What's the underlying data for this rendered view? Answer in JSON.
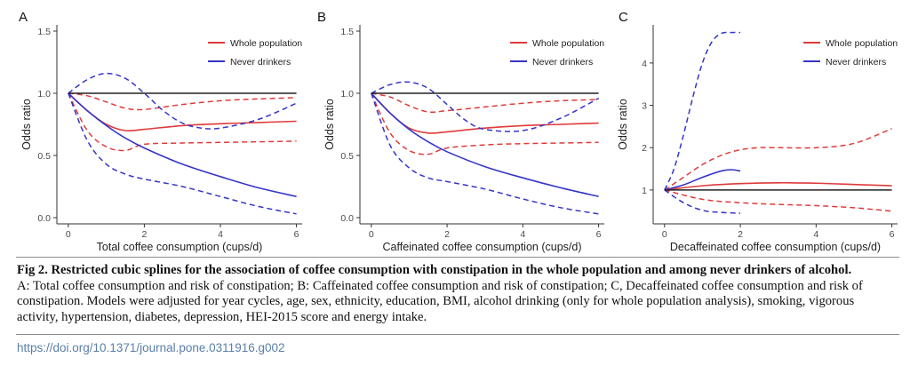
{
  "colors": {
    "whole_population": "#e03a3a",
    "never_drinkers": "#3535c8",
    "reference": "#222222",
    "axis_text": "#4a4a4a",
    "doi_link": "#5a7fa8"
  },
  "chart_data": [
    {
      "panel": "A",
      "type": "line",
      "xlabel": "Total coffee consumption (cups/d)",
      "ylabel": "Odds ratio",
      "xlim": [
        -0.3,
        6.15
      ],
      "ylim": [
        -0.05,
        1.55
      ],
      "xticks": [
        0,
        2,
        4,
        6
      ],
      "yticks": [
        0.0,
        0.5,
        1.0,
        1.5
      ],
      "ytick_labels": [
        "0.0",
        "0.5",
        "1.0",
        "1.5"
      ],
      "grid": false,
      "legend_position": "top-right",
      "legend": [
        "Whole population",
        "Never drinkers"
      ],
      "series": [
        {
          "name": "Whole population",
          "style": "solid",
          "x": [
            0,
            0.5,
            1,
            1.5,
            2,
            3,
            4,
            5,
            6
          ],
          "y": [
            1.0,
            0.86,
            0.75,
            0.7,
            0.71,
            0.74,
            0.755,
            0.765,
            0.775
          ]
        },
        {
          "style": "dashed",
          "role": "whole_population_upper_ci",
          "x": [
            0,
            0.5,
            1,
            1.5,
            2,
            3,
            4,
            5,
            6
          ],
          "y": [
            1.0,
            0.98,
            0.93,
            0.88,
            0.87,
            0.91,
            0.94,
            0.955,
            0.965
          ]
        },
        {
          "style": "dashed",
          "role": "whole_population_lower_ci",
          "x": [
            0,
            0.5,
            1,
            1.5,
            2,
            3,
            4,
            5,
            6
          ],
          "y": [
            1.0,
            0.7,
            0.57,
            0.54,
            0.59,
            0.6,
            0.605,
            0.61,
            0.615
          ]
        },
        {
          "name": "Never drinkers",
          "style": "solid",
          "x": [
            0,
            0.5,
            1,
            1.5,
            2,
            3,
            4,
            5,
            6
          ],
          "y": [
            1.0,
            0.86,
            0.74,
            0.64,
            0.56,
            0.43,
            0.33,
            0.24,
            0.17
          ]
        },
        {
          "style": "dashed",
          "role": "never_drinkers_upper_ci",
          "x": [
            0,
            0.5,
            1,
            1.5,
            2,
            2.5,
            3,
            3.5,
            4,
            5,
            6
          ],
          "y": [
            1.0,
            1.11,
            1.16,
            1.12,
            1.0,
            0.86,
            0.76,
            0.72,
            0.72,
            0.79,
            0.92
          ]
        },
        {
          "style": "dashed",
          "role": "never_drinkers_lower_ci",
          "x": [
            0,
            0.5,
            1,
            1.5,
            2,
            3,
            4,
            5,
            6
          ],
          "y": [
            1.0,
            0.62,
            0.43,
            0.35,
            0.31,
            0.25,
            0.17,
            0.09,
            0.03
          ]
        },
        {
          "style": "solid",
          "role": "reference",
          "x": [
            0,
            6
          ],
          "y": [
            1.0,
            1.0
          ]
        }
      ]
    },
    {
      "panel": "B",
      "type": "line",
      "xlabel": "Caffeinated coffee consumption (cups/d)",
      "ylabel": "Odds ratio",
      "xlim": [
        -0.3,
        6.15
      ],
      "ylim": [
        -0.05,
        1.55
      ],
      "xticks": [
        0,
        2,
        4,
        6
      ],
      "yticks": [
        0.0,
        0.5,
        1.0,
        1.5
      ],
      "ytick_labels": [
        "0.0",
        "0.5",
        "1.0",
        "1.5"
      ],
      "grid": false,
      "legend_position": "top-right",
      "legend": [
        "Whole population",
        "Never drinkers"
      ],
      "series": [
        {
          "name": "Whole population",
          "style": "solid",
          "x": [
            0,
            0.5,
            1,
            1.5,
            2,
            3,
            4,
            5,
            6
          ],
          "y": [
            1.0,
            0.84,
            0.72,
            0.68,
            0.69,
            0.72,
            0.74,
            0.75,
            0.76
          ]
        },
        {
          "style": "dashed",
          "role": "whole_population_upper_ci",
          "x": [
            0,
            0.5,
            1,
            1.5,
            2,
            3,
            4,
            5,
            6
          ],
          "y": [
            1.0,
            0.97,
            0.9,
            0.85,
            0.86,
            0.89,
            0.92,
            0.94,
            0.95
          ]
        },
        {
          "style": "dashed",
          "role": "whole_population_lower_ci",
          "x": [
            0,
            0.5,
            1,
            1.5,
            2,
            3,
            4,
            5,
            6
          ],
          "y": [
            1.0,
            0.68,
            0.54,
            0.51,
            0.56,
            0.585,
            0.595,
            0.6,
            0.605
          ]
        },
        {
          "name": "Never drinkers",
          "style": "solid",
          "x": [
            0,
            0.5,
            1,
            1.5,
            2,
            3,
            4,
            5,
            6
          ],
          "y": [
            1.0,
            0.84,
            0.71,
            0.61,
            0.53,
            0.41,
            0.32,
            0.24,
            0.17
          ]
        },
        {
          "style": "dashed",
          "role": "never_drinkers_upper_ci",
          "x": [
            0,
            0.5,
            1,
            1.5,
            2,
            2.5,
            3,
            4,
            5,
            6
          ],
          "y": [
            1.0,
            1.07,
            1.09,
            1.04,
            0.91,
            0.78,
            0.71,
            0.7,
            0.8,
            0.96
          ]
        },
        {
          "style": "dashed",
          "role": "never_drinkers_lower_ci",
          "x": [
            0,
            0.5,
            1,
            1.5,
            2,
            3,
            4,
            5,
            6
          ],
          "y": [
            1.0,
            0.58,
            0.4,
            0.32,
            0.29,
            0.23,
            0.15,
            0.08,
            0.03
          ]
        },
        {
          "style": "solid",
          "role": "reference",
          "x": [
            0,
            6
          ],
          "y": [
            1.0,
            1.0
          ]
        }
      ]
    },
    {
      "panel": "C",
      "type": "line",
      "xlabel": "Decaffeinated coffee consumption (cups/d)",
      "ylabel": "Odds ratio",
      "xlim": [
        -0.3,
        6.15
      ],
      "ylim": [
        0.2,
        4.9
      ],
      "xticks": [
        0,
        2,
        4,
        6
      ],
      "yticks": [
        1,
        2,
        3,
        4
      ],
      "ytick_labels": [
        "1",
        "2",
        "3",
        "4"
      ],
      "grid": false,
      "legend_position": "top-right",
      "legend": [
        "Whole population",
        "Never drinkers"
      ],
      "series": [
        {
          "name": "Whole population",
          "style": "solid",
          "x": [
            0,
            1,
            2,
            3,
            4,
            5,
            6
          ],
          "y": [
            1.0,
            1.1,
            1.15,
            1.17,
            1.16,
            1.13,
            1.1
          ]
        },
        {
          "style": "dashed",
          "role": "whole_population_upper_ci",
          "x": [
            0,
            0.5,
            1,
            1.5,
            2,
            2.5,
            3,
            4,
            5,
            6
          ],
          "y": [
            1.0,
            1.3,
            1.6,
            1.82,
            1.95,
            2.0,
            2.0,
            2.0,
            2.1,
            2.45
          ]
        },
        {
          "style": "dashed",
          "role": "whole_population_lower_ci",
          "x": [
            0,
            1,
            2,
            3,
            4,
            5,
            6
          ],
          "y": [
            1.0,
            0.78,
            0.7,
            0.66,
            0.63,
            0.58,
            0.5
          ]
        },
        {
          "name": "Never drinkers",
          "style": "solid",
          "x": [
            0,
            0.5,
            1,
            1.5,
            1.75,
            2
          ],
          "y": [
            1.0,
            1.12,
            1.3,
            1.45,
            1.48,
            1.45
          ]
        },
        {
          "style": "dashed",
          "role": "never_drinkers_upper_ci",
          "x": [
            0,
            0.25,
            0.5,
            0.75,
            1,
            1.25,
            1.5,
            1.75,
            2
          ],
          "y": [
            1.0,
            1.5,
            2.3,
            3.2,
            4.0,
            4.5,
            4.7,
            4.72,
            4.72
          ]
        },
        {
          "style": "dashed",
          "role": "never_drinkers_lower_ci",
          "x": [
            0,
            0.5,
            1,
            1.5,
            2
          ],
          "y": [
            1.0,
            0.7,
            0.52,
            0.47,
            0.45
          ]
        },
        {
          "style": "solid",
          "role": "reference",
          "x": [
            0,
            6
          ],
          "y": [
            1.0,
            1.0
          ]
        }
      ]
    }
  ],
  "caption": {
    "title": "Fig 2. Restricted cubic splines for the association of coffee consumption with constipation in the whole population and among never drinkers of alcohol.",
    "body": "A: Total coffee consumption and risk of constipation; B: Caffeinated coffee consumption and risk of constipation; C, Decaffeinated coffee consumption and risk of constipation. Models were adjusted for year cycles, age, sex, ethnicity, education, BMI, alcohol drinking (only for whole population analysis), smoking, vigorous activity, hypertension, diabetes, depression, HEI-2015 score and energy intake."
  },
  "doi": "https://doi.org/10.1371/journal.pone.0311916.g002"
}
